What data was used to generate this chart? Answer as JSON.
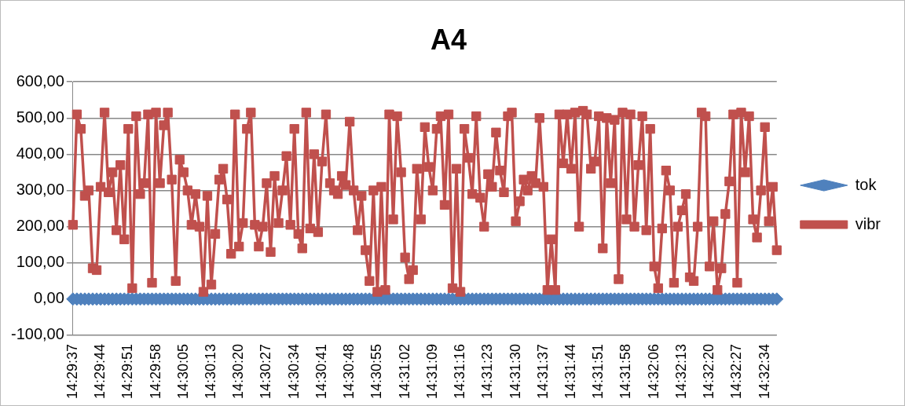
{
  "chart_data": {
    "type": "line",
    "title": "A4",
    "categories": [
      "14:29:37",
      null,
      null,
      null,
      null,
      null,
      null,
      "14:29:44",
      null,
      null,
      null,
      null,
      null,
      null,
      "14:29:51",
      null,
      null,
      null,
      null,
      null,
      null,
      "14:29:58",
      null,
      null,
      null,
      null,
      null,
      null,
      "14:30:05",
      null,
      null,
      null,
      null,
      null,
      null,
      "14:30:13",
      null,
      null,
      null,
      null,
      null,
      null,
      "14:30:20",
      null,
      null,
      null,
      null,
      null,
      null,
      "14:30:27",
      null,
      null,
      null,
      null,
      null,
      null,
      "14:30:34",
      null,
      null,
      null,
      null,
      null,
      null,
      "14:30:41",
      null,
      null,
      null,
      null,
      null,
      null,
      "14:30:48",
      null,
      null,
      null,
      null,
      null,
      null,
      "14:30:55",
      null,
      null,
      null,
      null,
      null,
      null,
      "14:31:02",
      null,
      null,
      null,
      null,
      null,
      null,
      "14:31:09",
      null,
      null,
      null,
      null,
      null,
      null,
      "14:31:16",
      null,
      null,
      null,
      null,
      null,
      null,
      "14:31:23",
      null,
      null,
      null,
      null,
      null,
      null,
      "14:31:30",
      null,
      null,
      null,
      null,
      null,
      null,
      "14:31:37",
      null,
      null,
      null,
      null,
      null,
      null,
      "14:31:44",
      null,
      null,
      null,
      null,
      null,
      null,
      "14:31:51",
      null,
      null,
      null,
      null,
      null,
      null,
      "14:31:58",
      null,
      null,
      null,
      null,
      null,
      null,
      "14:32:06",
      null,
      null,
      null,
      null,
      null,
      null,
      "14:32:13",
      null,
      null,
      null,
      null,
      null,
      null,
      "14:32:20",
      null,
      null,
      null,
      null,
      null,
      null,
      "14:32:27",
      null,
      null,
      null,
      null,
      null,
      null,
      "14:32:34",
      null,
      null,
      null
    ],
    "series": [
      {
        "name": "tok",
        "color": "#4f81bd",
        "marker": "diamond",
        "values": [
          0,
          0,
          0,
          0,
          0,
          0,
          0,
          0,
          0,
          0,
          0,
          0,
          0,
          0,
          0,
          0,
          0,
          0,
          0,
          0,
          0,
          0,
          0,
          0,
          0,
          0,
          0,
          0,
          0,
          0,
          0,
          0,
          0,
          0,
          0,
          0,
          0,
          0,
          0,
          0,
          0,
          0,
          0,
          0,
          0,
          0,
          0,
          0,
          0,
          0,
          0,
          0,
          0,
          0,
          0,
          0,
          0,
          0,
          0,
          0,
          0,
          0,
          0,
          0,
          0,
          0,
          0,
          0,
          0,
          0,
          0,
          0,
          0,
          0,
          0,
          0,
          0,
          0,
          0,
          0,
          0,
          0,
          0,
          0,
          0,
          0,
          0,
          0,
          0,
          0,
          0,
          0,
          0,
          0,
          0,
          0,
          0,
          0,
          0,
          0,
          0,
          0,
          0,
          0,
          0,
          0,
          0,
          0,
          0,
          0,
          0,
          0,
          0,
          0,
          0,
          0,
          0,
          0,
          0,
          0,
          0,
          0,
          0,
          0,
          0,
          0,
          0,
          0,
          0,
          0,
          0,
          0,
          0,
          0,
          0,
          0,
          0,
          0,
          0,
          0,
          0,
          0,
          0,
          0,
          0,
          0,
          0,
          0,
          0,
          0,
          0,
          0,
          0,
          0,
          0,
          0,
          0,
          0,
          0,
          0,
          0,
          0,
          0,
          0,
          0,
          0,
          0,
          0,
          0,
          0,
          0,
          0,
          0,
          0,
          0,
          0,
          0,
          0,
          0
        ]
      },
      {
        "name": "vibr",
        "color": "#c0504d",
        "marker": "square",
        "values": [
          205,
          510,
          470,
          285,
          300,
          85,
          80,
          310,
          515,
          295,
          350,
          190,
          370,
          165,
          470,
          30,
          505,
          290,
          320,
          510,
          45,
          515,
          320,
          480,
          515,
          330,
          50,
          385,
          350,
          300,
          205,
          290,
          200,
          20,
          285,
          40,
          180,
          330,
          360,
          275,
          125,
          510,
          145,
          210,
          470,
          515,
          205,
          145,
          200,
          320,
          130,
          340,
          210,
          300,
          395,
          205,
          470,
          180,
          140,
          515,
          195,
          400,
          185,
          380,
          510,
          320,
          300,
          290,
          340,
          315,
          490,
          300,
          190,
          285,
          135,
          50,
          300,
          20,
          310,
          25,
          510,
          220,
          505,
          350,
          115,
          55,
          80,
          360,
          220,
          475,
          365,
          300,
          470,
          505,
          260,
          510,
          30,
          360,
          20,
          470,
          390,
          290,
          505,
          280,
          200,
          345,
          310,
          460,
          355,
          295,
          505,
          515,
          215,
          270,
          330,
          300,
          340,
          320,
          500,
          310,
          25,
          165,
          25,
          510,
          375,
          510,
          360,
          515,
          200,
          520,
          510,
          360,
          380,
          505,
          140,
          500,
          320,
          495,
          55,
          515,
          220,
          510,
          200,
          370,
          505,
          190,
          470,
          90,
          30,
          195,
          355,
          300,
          45,
          200,
          245,
          290,
          60,
          50,
          200,
          515,
          505,
          90,
          215,
          25,
          85,
          235,
          325,
          510,
          45,
          515,
          350,
          505,
          220,
          170,
          300,
          475,
          215,
          310,
          135
        ]
      }
    ],
    "ylim": [
      -100,
      600
    ],
    "yticks": [
      {
        "value": -100,
        "label": "-100,00"
      },
      {
        "value": 0,
        "label": "0,00"
      },
      {
        "value": 100,
        "label": "100,00"
      },
      {
        "value": 200,
        "label": "200,00"
      },
      {
        "value": 300,
        "label": "300,00"
      },
      {
        "value": 400,
        "label": "400,00"
      },
      {
        "value": 500,
        "label": "500,00"
      },
      {
        "value": 600,
        "label": "600,00"
      }
    ],
    "grid": "y",
    "legend": "right",
    "line_style": "solid"
  }
}
